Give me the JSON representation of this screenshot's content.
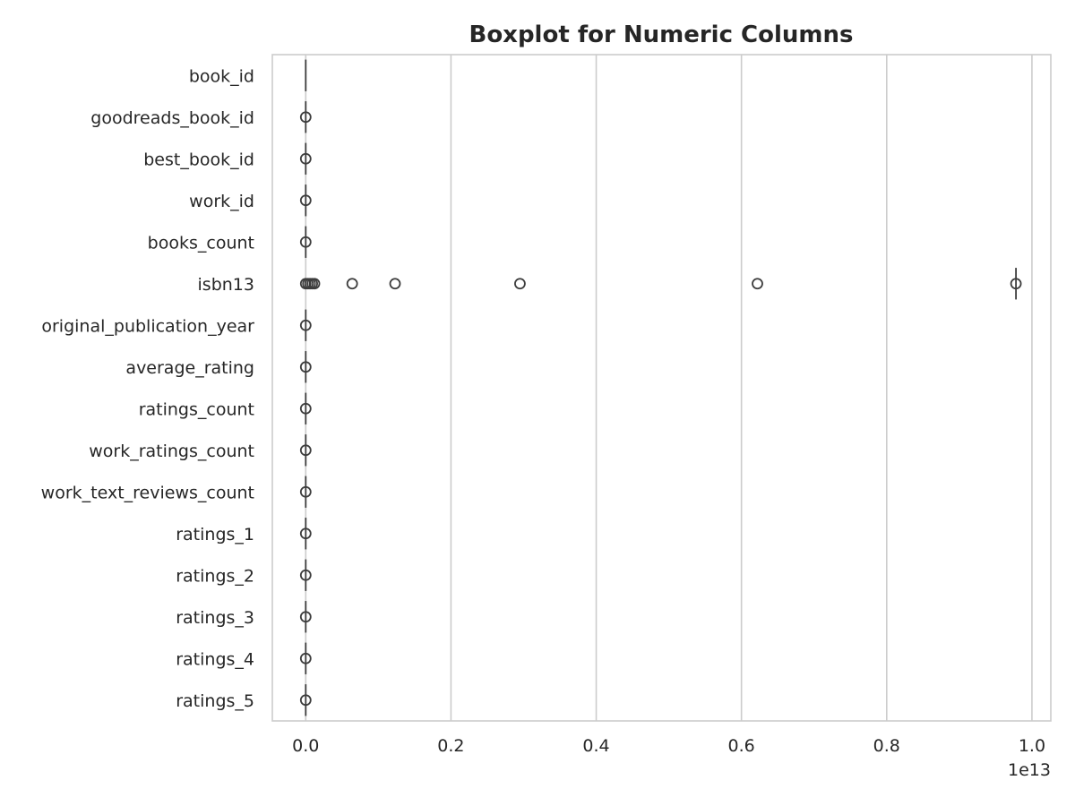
{
  "chart_data": {
    "type": "boxplot",
    "orientation": "horizontal",
    "title": "Boxplot for Numeric Columns",
    "xlabel": "",
    "ylabel": "",
    "x_scale_label": "1e13",
    "x_scale": 10000000000000.0,
    "xlim": [
      -0.046,
      1.026
    ],
    "x_ticks": [
      0.0,
      0.2,
      0.4,
      0.6,
      0.8,
      1.0
    ],
    "x_tick_labels": [
      "0.0",
      "0.2",
      "0.4",
      "0.6",
      "0.8",
      "1.0"
    ],
    "grid": "vertical",
    "categories": [
      "book_id",
      "goodreads_book_id",
      "best_book_id",
      "work_id",
      "books_count",
      "isbn13",
      "original_publication_year",
      "average_rating",
      "ratings_count",
      "work_ratings_count",
      "work_text_reviews_count",
      "ratings_1",
      "ratings_2",
      "ratings_3",
      "ratings_4",
      "ratings_5"
    ],
    "series": [
      {
        "box": [
          0,
          0,
          0,
          0,
          0
        ],
        "outliers": []
      },
      {
        "box": [
          0,
          0,
          0,
          0,
          0
        ],
        "outliers": [
          0
        ]
      },
      {
        "box": [
          0,
          0,
          0,
          0,
          0
        ],
        "outliers": [
          0
        ]
      },
      {
        "box": [
          0,
          0,
          0,
          0,
          0
        ],
        "outliers": [
          0
        ]
      },
      {
        "box": [
          0,
          0,
          0,
          0,
          0
        ],
        "outliers": [
          0
        ]
      },
      {
        "box": [
          0.978,
          0.978,
          0.978,
          0.978,
          0.978
        ],
        "outliers": [
          0.0,
          0.003,
          0.006,
          0.009,
          0.012,
          0.064,
          0.123,
          0.295,
          0.622,
          0.978
        ]
      },
      {
        "box": [
          0,
          0,
          0,
          0,
          0
        ],
        "outliers": [
          0
        ]
      },
      {
        "box": [
          0,
          0,
          0,
          0,
          0
        ],
        "outliers": [
          0
        ]
      },
      {
        "box": [
          0,
          0,
          0,
          0,
          0
        ],
        "outliers": [
          0
        ]
      },
      {
        "box": [
          0,
          0,
          0,
          0,
          0
        ],
        "outliers": [
          0
        ]
      },
      {
        "box": [
          0,
          0,
          0,
          0,
          0
        ],
        "outliers": [
          0
        ]
      },
      {
        "box": [
          0,
          0,
          0,
          0,
          0
        ],
        "outliers": [
          0
        ]
      },
      {
        "box": [
          0,
          0,
          0,
          0,
          0
        ],
        "outliers": [
          0
        ]
      },
      {
        "box": [
          0,
          0,
          0,
          0,
          0
        ],
        "outliers": [
          0
        ]
      },
      {
        "box": [
          0,
          0,
          0,
          0,
          0
        ],
        "outliers": [
          0
        ]
      },
      {
        "box": [
          0,
          0,
          0,
          0,
          0
        ],
        "outliers": [
          0
        ]
      }
    ],
    "colors": {
      "frame": "#cccccc",
      "grid": "#cccccc",
      "text": "#262626",
      "marks": "#3d3d3d"
    }
  }
}
